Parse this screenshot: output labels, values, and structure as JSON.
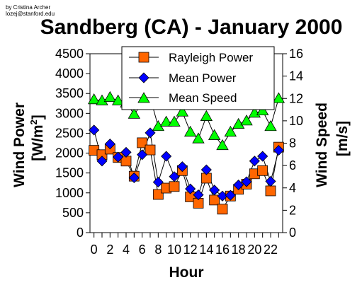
{
  "author": [
    "by Cristina Archer",
    "lozej@stanford.edu"
  ],
  "chart_data": {
    "type": "line",
    "title": "Sandberg (CA) - January 2000",
    "xlabel": "Hour",
    "ylabel_left": "Wind Power [W/m²]",
    "ylabel_right": "Wind Speed [m/s]",
    "xlim": [
      -0.5,
      23.5
    ],
    "ylim_left": [
      0,
      4500
    ],
    "ylim_right": [
      0,
      16
    ],
    "x_ticks": [
      0,
      2,
      4,
      6,
      8,
      10,
      12,
      14,
      16,
      18,
      20,
      22
    ],
    "y_left_ticks": [
      0,
      500,
      1000,
      1500,
      2000,
      2500,
      3000,
      3500,
      4000,
      4500
    ],
    "y_right_ticks": [
      0,
      2,
      4,
      6,
      8,
      10,
      12,
      14,
      16
    ],
    "legend": "top-center",
    "grid": false,
    "x": [
      0,
      1,
      2,
      3,
      4,
      5,
      6,
      7,
      8,
      9,
      10,
      11,
      12,
      13,
      14,
      15,
      16,
      17,
      18,
      19,
      20,
      21,
      22,
      23
    ],
    "series": [
      {
        "name": "Rayleigh Power",
        "axis": "left",
        "marker": "square",
        "color": "#ff6600",
        "values": [
          2070,
          1960,
          2100,
          1890,
          1800,
          1420,
          2260,
          2080,
          960,
          1120,
          1160,
          1560,
          900,
          740,
          1370,
          820,
          590,
          920,
          1090,
          1220,
          1480,
          1560,
          1050,
          2150
        ]
      },
      {
        "name": "Mean Power",
        "axis": "left",
        "marker": "diamond",
        "color": "#0000ff",
        "values": [
          2580,
          1800,
          2230,
          1900,
          2020,
          1380,
          1960,
          2510,
          1270,
          1920,
          1410,
          1660,
          1100,
          950,
          1580,
          1070,
          920,
          940,
          1200,
          1280,
          1800,
          1920,
          1290,
          2070
        ]
      },
      {
        "name": "Mean Speed",
        "axis": "right",
        "marker": "triangle",
        "color": "#00ff00",
        "values": [
          11.9,
          11.8,
          12.1,
          11.8,
          11.6,
          10.6,
          11.5,
          12.1,
          9.5,
          9.9,
          9.9,
          10.8,
          9.0,
          8.4,
          10.4,
          8.7,
          7.8,
          9.0,
          9.7,
          10.0,
          10.7,
          10.9,
          9.5,
          12.0
        ]
      }
    ]
  }
}
